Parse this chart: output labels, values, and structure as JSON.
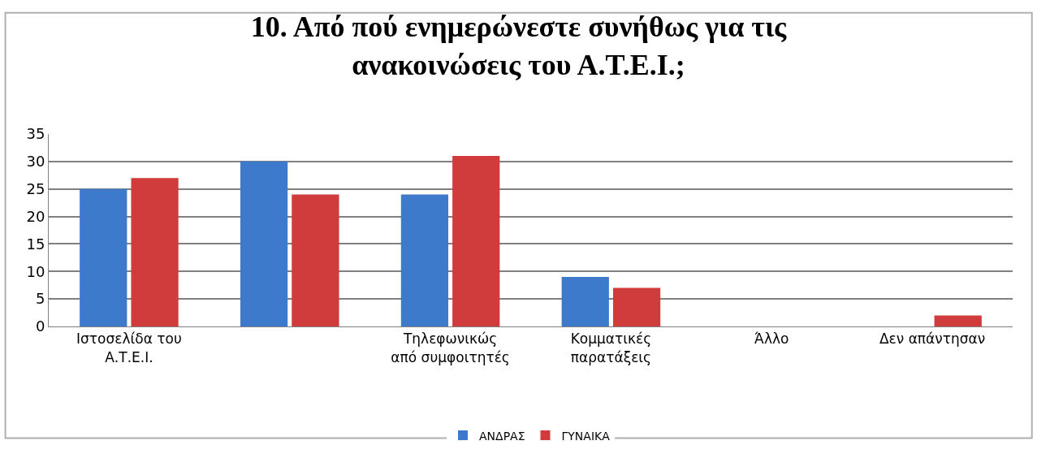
{
  "chart_data": {
    "type": "bar",
    "title": "10. Από πού ενημερώνεστε συνήθως για τις\nανακοινώσεις του Α.Τ.Ε.Ι.;",
    "categories": [
      "Ιστοσελίδα του\nΑ.Τ.Ε.Ι.",
      null,
      "Τηλεφωνικώς\nαπό συμφοιτητές",
      "Κομματικές\nπαρατάξεις",
      "Άλλο",
      "Δεν απάντησαν"
    ],
    "series": [
      {
        "name": "ΑΝΔΡΑΣ",
        "color": "#3d7acb",
        "values": [
          25,
          30,
          24,
          9,
          0,
          0
        ]
      },
      {
        "name": "ΓΥΝΑΙΚΑ",
        "color": "#cf3c3b",
        "values": [
          27,
          24,
          31,
          7,
          0,
          2
        ]
      }
    ],
    "ylim": [
      0,
      35
    ],
    "yticks": [
      0,
      5,
      10,
      15,
      20,
      25,
      30,
      35
    ],
    "grid": "y",
    "legend": "bottom"
  }
}
